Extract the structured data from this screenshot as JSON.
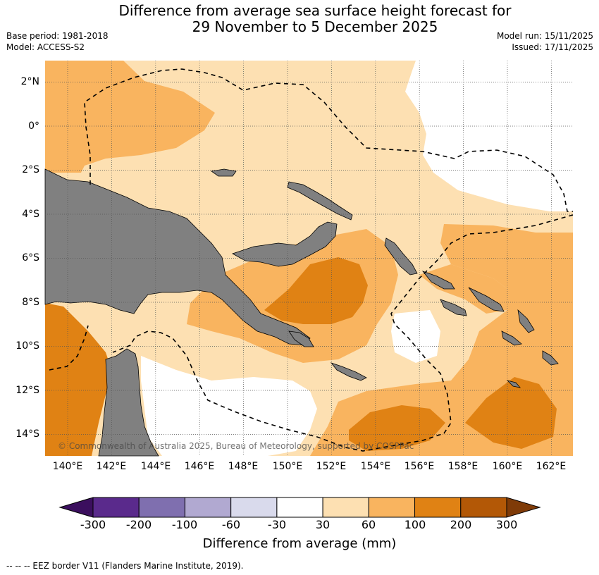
{
  "title_line1": "Difference from average sea surface height forecast for",
  "title_line2": "29 November to 5 December 2025",
  "base_period": "Base period: 1981-2018",
  "model": "Model: ACCESS-S2",
  "model_run": "Model run: 15/11/2025",
  "issued": "Issued: 17/11/2025",
  "copyright": "© Commonwealth of Australia 2025, Bureau of Meteorology, supported by COSPPac",
  "lat_ticks": [
    "2°N",
    "0°",
    "2°S",
    "4°S",
    "6°S",
    "8°S",
    "10°S",
    "12°S",
    "14°S"
  ],
  "lon_ticks": [
    "140°E",
    "142°E",
    "144°E",
    "146°E",
    "148°E",
    "150°E",
    "152°E",
    "154°E",
    "156°E",
    "158°E",
    "160°E",
    "162°E"
  ],
  "colorbar": {
    "title": "Difference from average (mm)",
    "labels": [
      "-300",
      "-200",
      "-100",
      "-60",
      "-30",
      "30",
      "60",
      "100",
      "200",
      "300"
    ],
    "colors": [
      "#3b0f5e",
      "#5a2a8c",
      "#7f6faf",
      "#b1a9d1",
      "#d9daec",
      "#ffffff",
      "#fde0b2",
      "#f9b45f",
      "#e08214",
      "#b35806",
      "#7f3b08"
    ]
  },
  "map_colors": {
    "land": "#808080",
    "band_30_60": "#fde0b2",
    "band_60_100": "#f9b45f",
    "band_100_200": "#e08214",
    "neutral": "#ffffff"
  },
  "footnote": "-- -- -- EEZ border V11 (Flanders Marine Institute, 2019)."
}
